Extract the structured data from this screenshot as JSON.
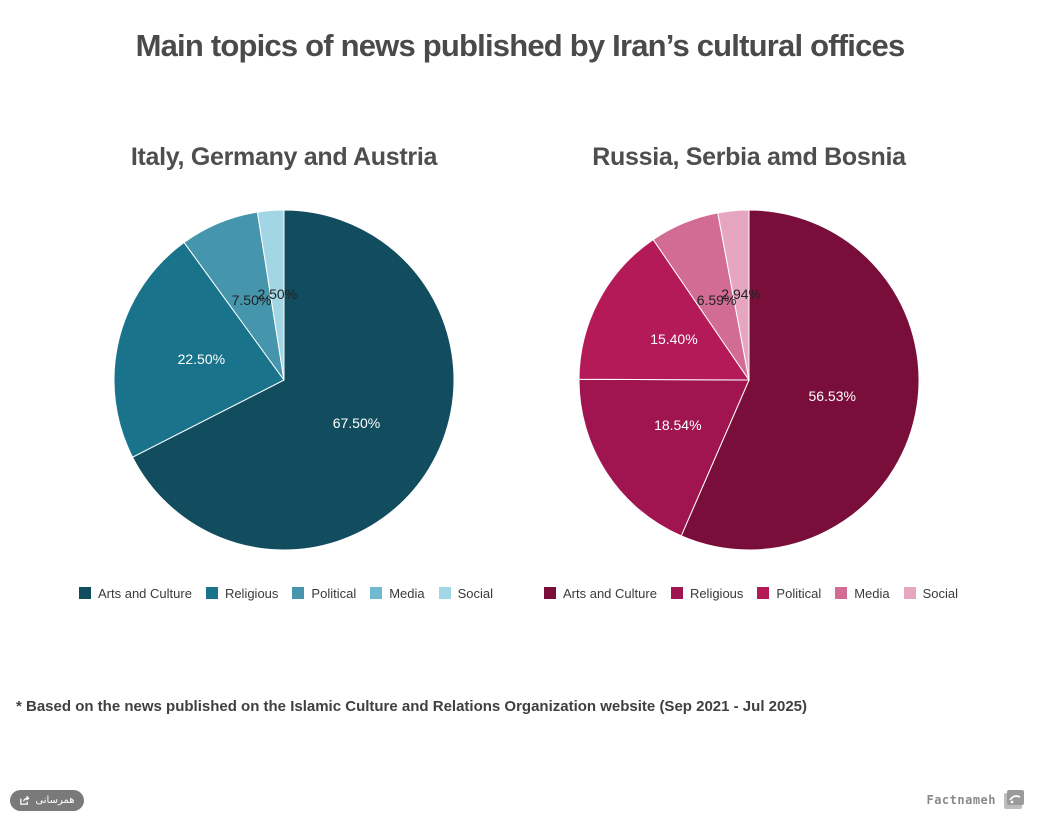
{
  "title": "Main topics of news published by Iran’s cultural offices",
  "footnote": "* Based on the news published on the Islamic Culture and Relations Organization website (Sep 2021 - Jul 2025)",
  "share_button": {
    "label": "همرسانی",
    "icon": "share-icon"
  },
  "brand": {
    "name": "Factnameh",
    "logo_icon": "factnameh-logo-icon"
  },
  "chart_data": [
    {
      "type": "pie",
      "title": "Italy, Germany and Austria",
      "categories": [
        "Arts and Culture",
        "Religious",
        "Political",
        "Media",
        "Social"
      ],
      "values": [
        67.5,
        22.5,
        7.5,
        0,
        2.5
      ],
      "labels": [
        "67.50%",
        "22.50%",
        "7.50%",
        "",
        "2.50%"
      ],
      "colors": [
        "#114d5e",
        "#19738a",
        "#4596ad",
        "#6fbad0",
        "#a2d6e4"
      ],
      "label_colors": [
        "#ffffff",
        "#ffffff",
        "#222222",
        "#222222",
        "#222222"
      ],
      "legend": "bottom",
      "start_angle": "12 o'clock",
      "direction": "clockwise"
    },
    {
      "type": "pie",
      "title": "Russia, Serbia amd Bosnia",
      "categories": [
        "Arts and Culture",
        "Religious",
        "Political",
        "Media",
        "Social"
      ],
      "values": [
        56.53,
        18.54,
        15.4,
        6.59,
        2.94
      ],
      "labels": [
        "56.53%",
        "18.54%",
        "15.40%",
        "6.59%",
        "2.94%"
      ],
      "colors": [
        "#7a0e3a",
        "#a01550",
        "#b51a58",
        "#d36c94",
        "#e6a6c0"
      ],
      "label_colors": [
        "#ffffff",
        "#ffffff",
        "#ffffff",
        "#222222",
        "#222222"
      ],
      "legend": "bottom",
      "start_angle": "12 o'clock",
      "direction": "clockwise"
    }
  ]
}
